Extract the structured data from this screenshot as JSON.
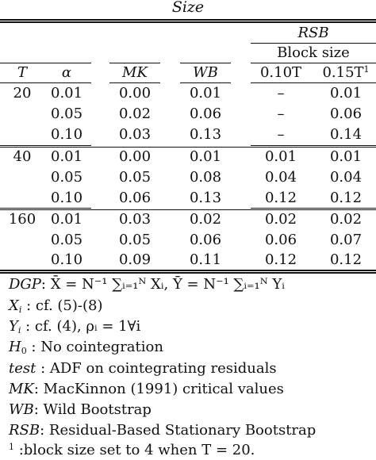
{
  "caption": "Size",
  "header": {
    "group_rsb": "RSB",
    "group_block": "Block size",
    "col_T": "T",
    "col_alpha": "α",
    "col_MK": "MK",
    "col_WB": "WB",
    "col_b1": "0.10T",
    "col_b2": "0.15T",
    "col_b2_sup": "1"
  },
  "rows": [
    {
      "T": "20",
      "alpha": "0.01",
      "MK": "0.00",
      "WB": "0.01",
      "b1": "–",
      "b2": "0.01"
    },
    {
      "T": "",
      "alpha": "0.05",
      "MK": "0.02",
      "WB": "0.06",
      "b1": "–",
      "b2": "0.06"
    },
    {
      "T": "",
      "alpha": "0.10",
      "MK": "0.03",
      "WB": "0.13",
      "b1": "–",
      "b2": "0.14"
    },
    {
      "T": "40",
      "alpha": "0.01",
      "MK": "0.00",
      "WB": "0.01",
      "b1": "0.01",
      "b2": "0.01"
    },
    {
      "T": "",
      "alpha": "0.05",
      "MK": "0.05",
      "WB": "0.08",
      "b1": "0.04",
      "b2": "0.04"
    },
    {
      "T": "",
      "alpha": "0.10",
      "MK": "0.06",
      "WB": "0.13",
      "b1": "0.12",
      "b2": "0.12"
    },
    {
      "T": "160",
      "alpha": "0.01",
      "MK": "0.03",
      "WB": "0.02",
      "b1": "0.02",
      "b2": "0.02"
    },
    {
      "T": "",
      "alpha": "0.05",
      "MK": "0.05",
      "WB": "0.06",
      "b1": "0.06",
      "b2": "0.07"
    },
    {
      "T": "",
      "alpha": "0.10",
      "MK": "0.09",
      "WB": "0.11",
      "b1": "0.12",
      "b2": "0.12"
    }
  ],
  "notes": {
    "dgp_label": "DGP",
    "dgp_text": ": X̄ = N⁻¹ ∑ᵢ₌₁ᴺ Xᵢ, Ȳ = N⁻¹ ∑ᵢ₌₁ᴺ Yᵢ",
    "xi_label": "X",
    "xi_sub": "i",
    "xi_text": " : cf. (5)-(8)",
    "yi_label": "Y",
    "yi_sub": "i",
    "yi_text": " : cf. (4), ρᵢ = 1∀i",
    "h0_label": "H",
    "h0_sub": "0",
    "h0_text": " : No cointegration",
    "test_label": "test",
    "test_text": " : ADF on cointegrating residuals",
    "mk_label": "MK",
    "mk_text": ": MacKinnon (1991) critical values",
    "wb_label": "WB",
    "wb_text": ": Wild Bootstrap",
    "rsb_label": "RSB",
    "rsb_text": ": Residual-Based Stationary Bootstrap",
    "fn_sup": "1",
    "fn_text": " :block size set to 4 when T = 20."
  }
}
